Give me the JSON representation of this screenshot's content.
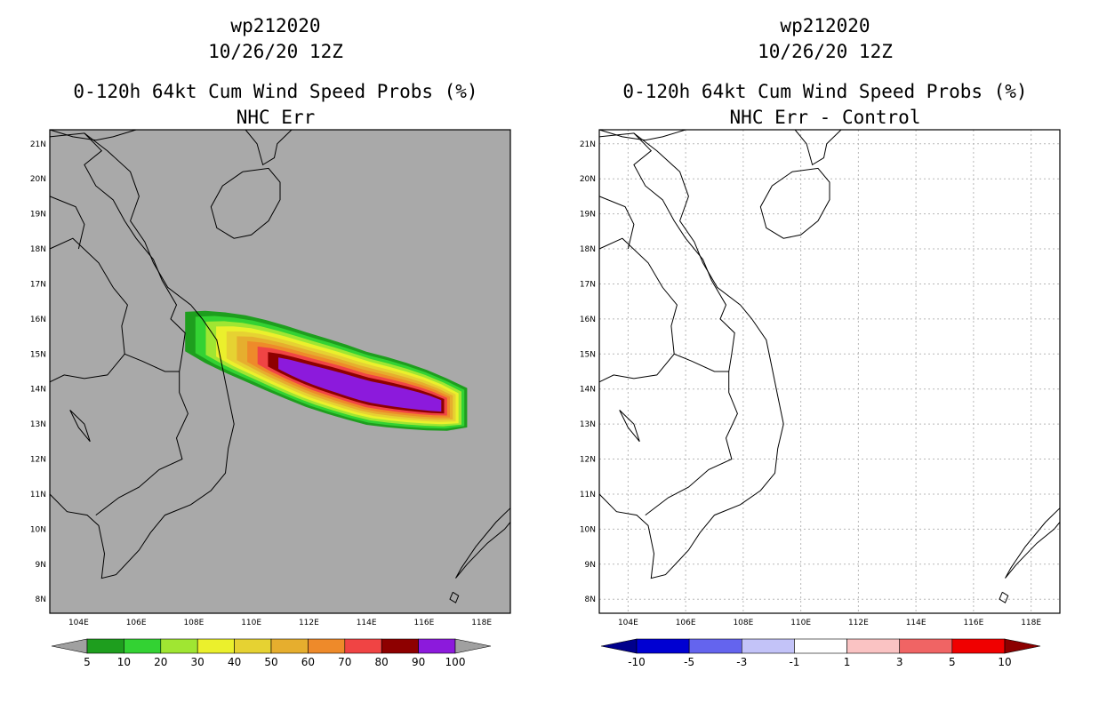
{
  "chart_data": [
    {
      "type": "heatmap",
      "storm_id": "wp212020",
      "date": "10/26/20 12Z",
      "title": "0-120h 64kt Cum Wind Speed Probs (%)",
      "subtitle": "NHC Err",
      "xlim": [
        103,
        119
      ],
      "ylim": [
        7.6,
        21.4
      ],
      "x_ticks": [
        "104E",
        "106E",
        "108E",
        "110E",
        "112E",
        "114E",
        "116E",
        "118E"
      ],
      "y_ticks": [
        "8N",
        "9N",
        "10N",
        "11N",
        "12N",
        "13N",
        "14N",
        "15N",
        "16N",
        "17N",
        "18N",
        "19N",
        "20N",
        "21N"
      ],
      "grid": false,
      "background": "#a9a9a9",
      "colorbar": {
        "levels": [
          "5",
          "10",
          "20",
          "30",
          "40",
          "50",
          "60",
          "70",
          "80",
          "90",
          "100"
        ],
        "colors": [
          "#1e9e1e",
          "#33d233",
          "#a0e632",
          "#ebf02c",
          "#e6d232",
          "#e6ae2e",
          "#ee8a2a",
          "#f04444",
          "#8e0000",
          "#8c1adc"
        ],
        "below_color": "#a0a0a0",
        "above_color": "#a0a0a0"
      },
      "probability_contours": [
        {
          "level": 5,
          "color": "#1e9e1e",
          "max_lon": 117.5
        },
        {
          "level": 10,
          "color": "#33d233",
          "max_lon": 117.4
        },
        {
          "level": 20,
          "color": "#a0e632",
          "max_lon": 117.3
        },
        {
          "level": 30,
          "color": "#ebf02c",
          "max_lon": 117.2
        },
        {
          "level": 40,
          "color": "#e6d232",
          "max_lon": 117.1
        },
        {
          "level": 50,
          "color": "#e6ae2e",
          "max_lon": 117.0
        },
        {
          "level": 60,
          "color": "#ee8a2a",
          "max_lon": 116.9
        },
        {
          "level": 70,
          "color": "#f04444",
          "max_lon": 116.8
        },
        {
          "level": 80,
          "color": "#8e0000",
          "max_lon": 116.7
        },
        {
          "level": 90,
          "color": "#8c1adc",
          "max_lon": 116.6
        }
      ]
    },
    {
      "type": "heatmap",
      "storm_id": "wp212020",
      "date": "10/26/20 12Z",
      "title": "0-120h 64kt Cum Wind Speed Probs (%)",
      "subtitle": "NHC Err - Control",
      "xlim": [
        103,
        119
      ],
      "ylim": [
        7.6,
        21.4
      ],
      "x_ticks": [
        "104E",
        "106E",
        "108E",
        "110E",
        "112E",
        "114E",
        "116E",
        "118E"
      ],
      "y_ticks": [
        "8N",
        "9N",
        "10N",
        "11N",
        "12N",
        "13N",
        "14N",
        "15N",
        "16N",
        "17N",
        "18N",
        "19N",
        "20N",
        "21N"
      ],
      "grid": true,
      "background": "#ffffff",
      "colorbar": {
        "levels": [
          "-10",
          "-5",
          "-3",
          "-1",
          "1",
          "3",
          "5",
          "10"
        ],
        "colors": [
          "#0000d2",
          "#6464ee",
          "#c3c3f8",
          "#ffffff",
          "#fac3c3",
          "#f06464",
          "#f00000"
        ],
        "below_color": "#00008c",
        "above_color": "#8c0000"
      },
      "probability_contours": []
    }
  ]
}
